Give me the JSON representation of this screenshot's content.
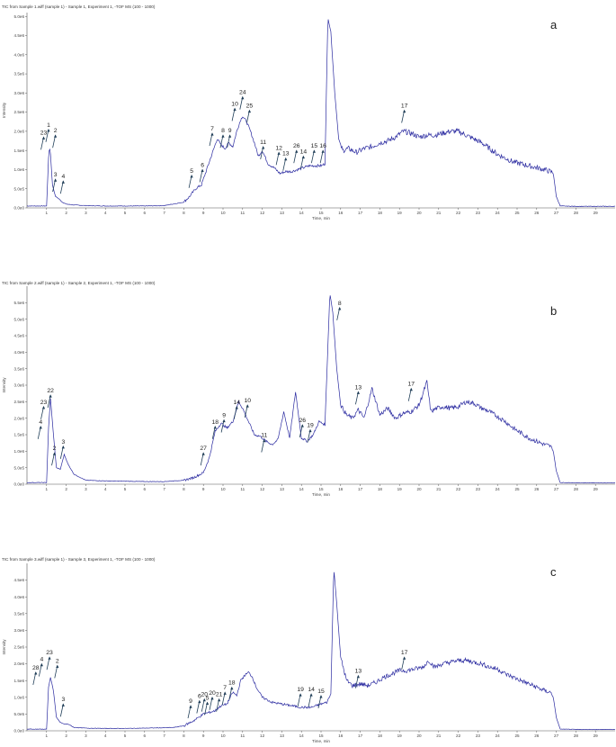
{
  "chart_data": [
    {
      "type": "line",
      "panel_letter": "a",
      "header": "TIC from Sample 1.wiff (sample 1) - Sample 1, Experiment 1, -TOF MS (100 - 1000)",
      "xlabel": "Time, min",
      "ylabel": "Intensity",
      "xlim": [
        0,
        30
      ],
      "ylim": [
        0,
        5.1
      ],
      "x_ticks": [
        "1",
        "2",
        "3",
        "4",
        "5",
        "6",
        "7",
        "8",
        "9",
        "10",
        "11",
        "12",
        "13",
        "14",
        "15",
        "16",
        "17",
        "18",
        "19",
        "20",
        "21",
        "22",
        "23",
        "24",
        "25",
        "26",
        "27",
        "28",
        "29"
      ],
      "y_ticks": [
        "0.0e0",
        "5.0e5",
        "1.0e6",
        "1.5e6",
        "2.0e6",
        "2.5e6",
        "3.0e6",
        "3.5e6",
        "4.0e6",
        "4.5e6",
        "5.0e6"
      ],
      "color": "#2a2aa0",
      "series": [
        {
          "x": [
            0,
            0.9,
            1.0,
            1.1,
            1.15,
            1.2,
            1.3,
            1.45,
            1.6,
            1.8,
            2.0,
            2.3,
            3,
            4,
            5,
            6,
            7,
            8,
            8.3,
            8.6,
            8.9,
            9.1,
            9.3,
            9.5,
            9.7,
            9.9,
            10.1,
            10.3,
            10.5,
            10.7,
            10.9,
            11.0,
            11.2,
            11.4,
            11.6,
            11.8,
            12.0,
            12.3,
            12.6,
            12.9,
            13.2,
            13.5,
            13.8,
            14.1,
            14.4,
            14.7,
            15.0,
            15.2,
            15.35,
            15.5,
            15.7,
            15.9,
            16.1,
            16.4,
            16.8,
            17.2,
            17.6,
            18.0,
            18.4,
            18.8,
            19.2,
            19.6,
            20.0,
            20.4,
            20.8,
            21.2,
            21.6,
            22.0,
            22.4,
            22.8,
            23.2,
            23.6,
            24.0,
            24.4,
            24.8,
            25.2,
            25.6,
            26.0,
            26.4,
            26.7,
            26.85,
            27.0,
            27.2,
            28,
            29,
            30
          ],
          "y": [
            0.05,
            0.05,
            0.05,
            1.3,
            1.6,
            1.4,
            0.6,
            0.3,
            0.25,
            0.15,
            0.1,
            0.08,
            0.06,
            0.05,
            0.05,
            0.05,
            0.06,
            0.15,
            0.3,
            0.5,
            0.6,
            0.9,
            1.2,
            1.5,
            1.8,
            1.65,
            1.55,
            1.7,
            1.6,
            2.0,
            2.3,
            2.4,
            2.25,
            2.0,
            1.7,
            1.35,
            1.5,
            1.15,
            1.05,
            0.9,
            0.95,
            0.95,
            1.0,
            1.05,
            1.1,
            1.1,
            1.1,
            1.15,
            5.0,
            4.6,
            3.0,
            1.8,
            1.5,
            1.55,
            1.45,
            1.55,
            1.6,
            1.7,
            1.75,
            1.85,
            2.0,
            1.95,
            1.85,
            1.9,
            1.9,
            1.95,
            2.0,
            2.0,
            1.9,
            1.8,
            1.7,
            1.55,
            1.4,
            1.3,
            1.2,
            1.15,
            1.1,
            1.05,
            1.0,
            0.95,
            0.9,
            0.3,
            0.05,
            0.04,
            0.04,
            0.04
          ]
        }
      ],
      "peak_labels": [
        {
          "label": "1",
          "x": 1.1,
          "y": 2.05
        },
        {
          "label": "23",
          "x": 0.85,
          "y": 1.85
        },
        {
          "label": "2",
          "x": 1.45,
          "y": 1.9
        },
        {
          "label": "3",
          "x": 1.45,
          "y": 0.75
        },
        {
          "label": "4",
          "x": 1.85,
          "y": 0.7
        },
        {
          "label": "5",
          "x": 8.4,
          "y": 0.85
        },
        {
          "label": "6",
          "x": 8.95,
          "y": 1.0
        },
        {
          "label": "7",
          "x": 9.45,
          "y": 1.95
        },
        {
          "label": "8",
          "x": 10.0,
          "y": 1.9
        },
        {
          "label": "9",
          "x": 10.35,
          "y": 1.9
        },
        {
          "label": "10",
          "x": 10.6,
          "y": 2.6
        },
        {
          "label": "24",
          "x": 11.0,
          "y": 2.9
        },
        {
          "label": "25",
          "x": 11.35,
          "y": 2.55
        },
        {
          "label": "11",
          "x": 12.05,
          "y": 1.6
        },
        {
          "label": "12",
          "x": 12.85,
          "y": 1.45
        },
        {
          "label": "13",
          "x": 13.2,
          "y": 1.3
        },
        {
          "label": "26",
          "x": 13.75,
          "y": 1.5
        },
        {
          "label": "14",
          "x": 14.1,
          "y": 1.35
        },
        {
          "label": "15",
          "x": 14.65,
          "y": 1.5
        },
        {
          "label": "16",
          "x": 15.1,
          "y": 1.5
        },
        {
          "label": "17",
          "x": 19.25,
          "y": 2.55
        }
      ]
    },
    {
      "type": "line",
      "panel_letter": "b",
      "header": "TIC from Sample 2.wiff (sample 1) - Sample 2, Experiment 1, -TOF MS (100 - 1000)",
      "xlabel": "Time, min",
      "ylabel": "Intensity",
      "xlim": [
        0,
        30
      ],
      "ylim": [
        0,
        6.0
      ],
      "x_ticks": [
        "1",
        "2",
        "3",
        "4",
        "5",
        "6",
        "7",
        "8",
        "9",
        "10",
        "11",
        "12",
        "13",
        "14",
        "15",
        "16",
        "17",
        "18",
        "19",
        "20",
        "21",
        "22",
        "23",
        "24",
        "25",
        "26",
        "27",
        "28",
        "29"
      ],
      "y_ticks": [
        "0.0e0",
        "5.0e5",
        "1.0e6",
        "1.5e6",
        "2.0e6",
        "2.5e6",
        "3.0e6",
        "3.5e6",
        "4.0e6",
        "4.5e6",
        "5.0e6",
        "5.5e6"
      ],
      "color": "#2a2aa0",
      "series": [
        {
          "x": [
            0,
            0.9,
            1.0,
            1.1,
            1.2,
            1.35,
            1.5,
            1.7,
            1.9,
            2.1,
            2.4,
            3,
            4,
            5,
            6,
            7,
            8,
            8.5,
            9.0,
            9.3,
            9.6,
            9.9,
            10.2,
            10.5,
            10.8,
            11.0,
            11.3,
            11.6,
            11.9,
            12.2,
            12.5,
            12.8,
            13.1,
            13.4,
            13.7,
            14.0,
            14.3,
            14.6,
            14.9,
            15.2,
            15.45,
            15.6,
            15.8,
            16.0,
            16.3,
            16.6,
            16.9,
            17.2,
            17.6,
            18.0,
            18.4,
            18.8,
            19.2,
            19.6,
            20.0,
            20.4,
            20.6,
            20.9,
            21.2,
            21.6,
            22.0,
            22.4,
            22.8,
            23.2,
            23.6,
            24.0,
            24.4,
            24.8,
            25.2,
            25.6,
            26.0,
            26.4,
            26.7,
            26.85,
            27.0,
            27.2,
            28,
            29,
            30
          ],
          "y": [
            0.05,
            0.05,
            0.05,
            1.7,
            2.6,
            1.5,
            0.5,
            0.45,
            0.9,
            0.6,
            0.3,
            0.12,
            0.1,
            0.09,
            0.08,
            0.08,
            0.12,
            0.2,
            0.35,
            0.8,
            1.6,
            1.85,
            1.7,
            1.9,
            2.5,
            2.3,
            1.9,
            1.5,
            1.45,
            1.3,
            1.2,
            1.35,
            2.2,
            1.4,
            2.8,
            1.4,
            1.3,
            1.5,
            1.9,
            1.8,
            5.8,
            5.2,
            3.5,
            2.4,
            2.1,
            2.0,
            2.25,
            2.0,
            2.9,
            2.1,
            2.3,
            2.0,
            2.15,
            2.2,
            2.4,
            3.1,
            2.2,
            2.3,
            2.35,
            2.3,
            2.35,
            2.5,
            2.45,
            2.3,
            2.2,
            2.05,
            1.9,
            1.7,
            1.55,
            1.4,
            1.3,
            1.2,
            1.15,
            1.0,
            0.4,
            0.05,
            0.04,
            0.04,
            0.04
          ]
        }
      ],
      "peak_labels": [
        {
          "label": "23",
          "x": 0.85,
          "y": 2.35
        },
        {
          "label": "22",
          "x": 1.2,
          "y": 2.7
        },
        {
          "label": "4",
          "x": 0.7,
          "y": 1.75
        },
        {
          "label": "2",
          "x": 1.4,
          "y": 0.95
        },
        {
          "label": "3",
          "x": 1.85,
          "y": 1.15
        },
        {
          "label": "27",
          "x": 9.0,
          "y": 0.95
        },
        {
          "label": "18",
          "x": 9.6,
          "y": 1.75
        },
        {
          "label": "9",
          "x": 10.05,
          "y": 1.95
        },
        {
          "label": "14",
          "x": 10.7,
          "y": 2.35
        },
        {
          "label": "10",
          "x": 11.25,
          "y": 2.4
        },
        {
          "label": "11",
          "x": 12.1,
          "y": 1.35
        },
        {
          "label": "26",
          "x": 14.05,
          "y": 1.8
        },
        {
          "label": "19",
          "x": 14.45,
          "y": 1.65
        },
        {
          "label": "8",
          "x": 15.95,
          "y": 5.35
        },
        {
          "label": "13",
          "x": 16.9,
          "y": 2.8
        },
        {
          "label": "17",
          "x": 19.6,
          "y": 2.9
        }
      ]
    },
    {
      "type": "line",
      "panel_letter": "c",
      "header": "TIC from Sample 3.wiff (sample 1) - Sample 3, Experiment 1, -TOF MS (100 - 1000)",
      "xlabel": "Time, min",
      "ylabel": "Intensity",
      "xlim": [
        0,
        30
      ],
      "ylim": [
        0,
        5.0
      ],
      "x_ticks": [
        "1",
        "2",
        "3",
        "4",
        "5",
        "6",
        "7",
        "8",
        "9",
        "10",
        "11",
        "12",
        "13",
        "14",
        "15",
        "16",
        "17",
        "18",
        "19",
        "20",
        "21",
        "22",
        "23",
        "24",
        "25",
        "26",
        "27",
        "28",
        "29"
      ],
      "y_ticks": [
        "0.0e0",
        "5.0e5",
        "1.0e6",
        "1.5e6",
        "2.0e6",
        "2.5e6",
        "3.0e6",
        "3.5e6",
        "4.0e6",
        "4.5e6"
      ],
      "color": "#2a2aa0",
      "series": [
        {
          "x": [
            0,
            0.9,
            1.0,
            1.1,
            1.2,
            1.35,
            1.5,
            1.7,
            1.9,
            2.1,
            2.4,
            3,
            4,
            5,
            6,
            7,
            7.5,
            8,
            8.5,
            9.0,
            9.3,
            9.6,
            9.9,
            10.2,
            10.5,
            10.7,
            10.9,
            11.1,
            11.3,
            11.5,
            11.7,
            12.0,
            12.5,
            13,
            13.5,
            14,
            14.5,
            15.0,
            15.3,
            15.5,
            15.65,
            15.8,
            16.0,
            16.3,
            16.6,
            17.0,
            17.4,
            17.8,
            18.2,
            18.6,
            19.0,
            19.4,
            19.8,
            20.2,
            20.5,
            20.8,
            21.2,
            21.6,
            22.0,
            22.4,
            22.8,
            23.2,
            23.6,
            24.0,
            24.4,
            24.8,
            25.2,
            25.6,
            26.0,
            26.4,
            26.7,
            26.85,
            27.0,
            27.2,
            28,
            29,
            30
          ],
          "y": [
            0.05,
            0.05,
            0.05,
            1.3,
            1.6,
            1.2,
            0.4,
            0.25,
            0.2,
            0.2,
            0.1,
            0.08,
            0.07,
            0.07,
            0.08,
            0.09,
            0.1,
            0.15,
            0.3,
            0.5,
            0.55,
            0.6,
            0.75,
            0.8,
            1.15,
            1.05,
            1.5,
            1.65,
            1.75,
            1.6,
            1.3,
            1.0,
            0.85,
            0.8,
            0.75,
            0.7,
            0.7,
            0.8,
            0.85,
            1.1,
            4.85,
            3.8,
            2.2,
            1.5,
            1.35,
            1.4,
            1.35,
            1.45,
            1.6,
            1.7,
            1.8,
            1.8,
            1.85,
            1.9,
            2.1,
            1.9,
            2.0,
            2.05,
            2.1,
            2.1,
            2.05,
            2.0,
            1.9,
            1.85,
            1.7,
            1.6,
            1.5,
            1.4,
            1.3,
            1.2,
            1.15,
            1.0,
            0.4,
            0.05,
            0.04,
            0.04,
            0.04
          ]
        }
      ],
      "peak_labels": [
        {
          "label": "4",
          "x": 0.75,
          "y": 2.0
        },
        {
          "label": "23",
          "x": 1.15,
          "y": 2.2
        },
        {
          "label": "28",
          "x": 0.45,
          "y": 1.75
        },
        {
          "label": "2",
          "x": 1.55,
          "y": 1.95
        },
        {
          "label": "3",
          "x": 1.85,
          "y": 0.8
        },
        {
          "label": "9",
          "x": 8.35,
          "y": 0.75
        },
        {
          "label": "6",
          "x": 8.8,
          "y": 0.9
        },
        {
          "label": "20",
          "x": 9.05,
          "y": 0.95
        },
        {
          "label": "5",
          "x": 9.2,
          "y": 0.85
        },
        {
          "label": "20",
          "x": 9.45,
          "y": 1.0
        },
        {
          "label": "21",
          "x": 9.8,
          "y": 0.95
        },
        {
          "label": "7",
          "x": 10.1,
          "y": 1.15
        },
        {
          "label": "18",
          "x": 10.45,
          "y": 1.3
        },
        {
          "label": "19",
          "x": 13.95,
          "y": 1.1
        },
        {
          "label": "14",
          "x": 14.5,
          "y": 1.1
        },
        {
          "label": "15",
          "x": 15.0,
          "y": 1.05
        },
        {
          "label": "13",
          "x": 16.9,
          "y": 1.65
        },
        {
          "label": "17",
          "x": 19.25,
          "y": 2.2
        }
      ]
    }
  ]
}
